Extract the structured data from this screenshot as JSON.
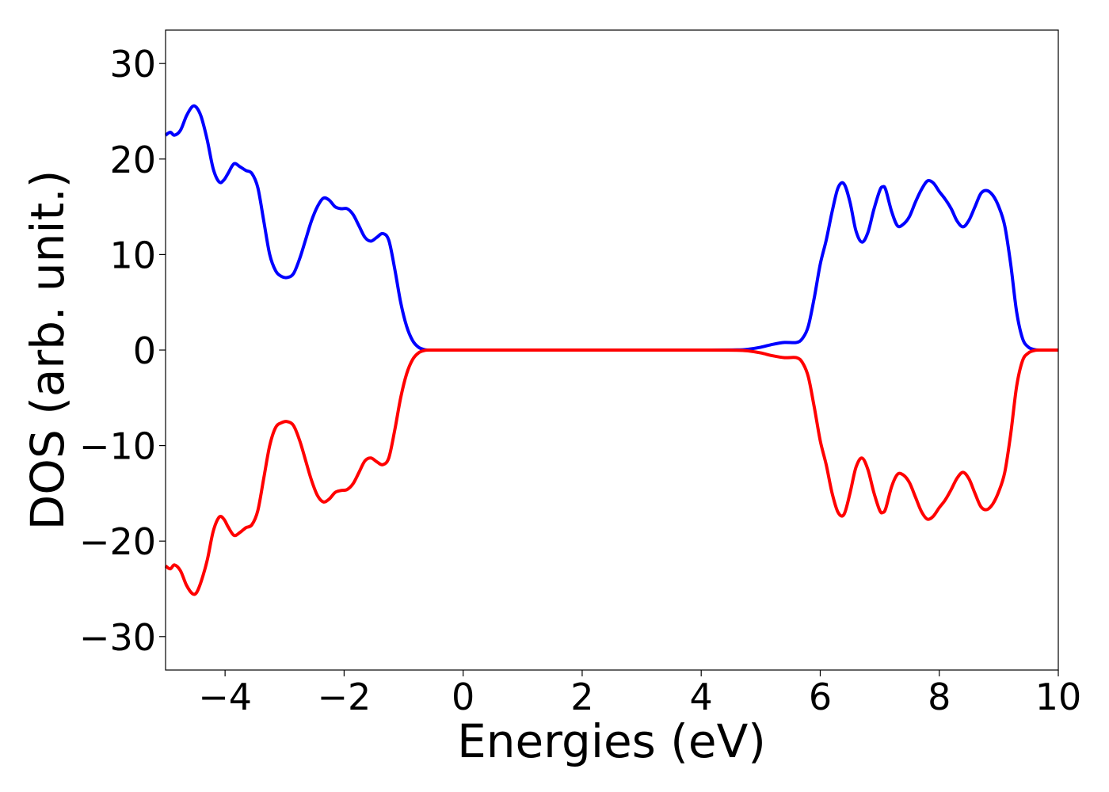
{
  "chart_data": {
    "type": "line",
    "title": "",
    "xlabel": "Energies (eV)",
    "ylabel": "DOS (arb. unit.)",
    "xlim": [
      -5,
      10
    ],
    "ylim": [
      -33.5,
      33.5
    ],
    "xticks": [
      -4,
      -2,
      0,
      2,
      4,
      6,
      8,
      10
    ],
    "xtick_labels": [
      "−4",
      "−2",
      "0",
      "2",
      "4",
      "6",
      "8",
      "10"
    ],
    "yticks": [
      30,
      20,
      10,
      0,
      -10,
      -20,
      -30
    ],
    "ytick_labels": [
      "30",
      "20",
      "10",
      "0",
      "−10",
      "−20",
      "−30"
    ],
    "grid": false,
    "legend": "none",
    "series": [
      {
        "color": "#0000ff",
        "x": [
          -5.0,
          -4.92,
          -4.85,
          -4.75,
          -4.65,
          -4.55,
          -4.48,
          -4.4,
          -4.3,
          -4.2,
          -4.1,
          -4.02,
          -3.95,
          -3.85,
          -3.75,
          -3.65,
          -3.55,
          -3.45,
          -3.35,
          -3.25,
          -3.15,
          -3.05,
          -2.95,
          -2.85,
          -2.75,
          -2.65,
          -2.55,
          -2.45,
          -2.35,
          -2.25,
          -2.15,
          -2.05,
          -1.95,
          -1.85,
          -1.75,
          -1.65,
          -1.55,
          -1.45,
          -1.35,
          -1.25,
          -1.15,
          -1.05,
          -0.95,
          -0.85,
          -0.75,
          -0.65,
          -0.55,
          -0.4,
          -0.2,
          0.0,
          1.0,
          2.0,
          3.0,
          4.0,
          4.6,
          4.8,
          5.0,
          5.2,
          5.4,
          5.6,
          5.7,
          5.8,
          5.9,
          6.0,
          6.1,
          6.2,
          6.3,
          6.4,
          6.5,
          6.6,
          6.7,
          6.8,
          6.9,
          7.0,
          7.05,
          7.1,
          7.2,
          7.3,
          7.4,
          7.5,
          7.6,
          7.7,
          7.8,
          7.9,
          8.0,
          8.1,
          8.2,
          8.3,
          8.4,
          8.5,
          8.6,
          8.7,
          8.8,
          8.9,
          9.0,
          9.1,
          9.2,
          9.3,
          9.4,
          9.5,
          9.6,
          9.7,
          9.8,
          10.0
        ],
        "y": [
          22.5,
          22.8,
          22.5,
          23.0,
          24.5,
          25.5,
          25.4,
          24.4,
          22.0,
          19.0,
          17.6,
          17.8,
          18.5,
          19.5,
          19.2,
          18.8,
          18.5,
          17.0,
          13.5,
          10.0,
          8.3,
          7.7,
          7.6,
          8.0,
          9.5,
          11.5,
          13.5,
          15.0,
          15.9,
          15.7,
          15.0,
          14.8,
          14.8,
          14.2,
          13.0,
          11.8,
          11.4,
          11.8,
          12.2,
          11.5,
          8.5,
          5.0,
          2.5,
          1.0,
          0.3,
          0.05,
          0.0,
          0.0,
          0.0,
          0.0,
          0.0,
          0.0,
          0.0,
          0.0,
          0.02,
          0.1,
          0.3,
          0.6,
          0.8,
          0.8,
          1.2,
          2.5,
          5.5,
          9.0,
          11.5,
          14.5,
          17.0,
          17.4,
          15.5,
          12.5,
          11.3,
          12.3,
          14.7,
          16.7,
          17.1,
          16.8,
          14.5,
          13.0,
          13.2,
          14.0,
          15.5,
          16.8,
          17.7,
          17.5,
          16.6,
          15.8,
          14.8,
          13.5,
          12.9,
          13.6,
          15.0,
          16.4,
          16.7,
          16.2,
          15.0,
          13.0,
          9.0,
          4.0,
          1.2,
          0.3,
          0.05,
          0.0,
          0.0,
          0.0
        ]
      },
      {
        "color": "#ff0000",
        "x": [
          -5.0,
          -4.92,
          -4.85,
          -4.75,
          -4.65,
          -4.55,
          -4.48,
          -4.4,
          -4.3,
          -4.2,
          -4.1,
          -4.02,
          -3.95,
          -3.85,
          -3.75,
          -3.65,
          -3.55,
          -3.45,
          -3.35,
          -3.25,
          -3.15,
          -3.05,
          -2.95,
          -2.85,
          -2.75,
          -2.65,
          -2.55,
          -2.45,
          -2.35,
          -2.25,
          -2.15,
          -2.05,
          -1.95,
          -1.85,
          -1.75,
          -1.65,
          -1.55,
          -1.45,
          -1.35,
          -1.25,
          -1.15,
          -1.05,
          -0.95,
          -0.85,
          -0.75,
          -0.65,
          -0.55,
          -0.4,
          -0.2,
          0.0,
          1.0,
          2.0,
          3.0,
          4.0,
          4.6,
          4.8,
          5.0,
          5.2,
          5.4,
          5.6,
          5.7,
          5.8,
          5.9,
          6.0,
          6.1,
          6.2,
          6.3,
          6.4,
          6.5,
          6.6,
          6.7,
          6.8,
          6.9,
          7.0,
          7.05,
          7.1,
          7.2,
          7.3,
          7.4,
          7.5,
          7.6,
          7.7,
          7.8,
          7.9,
          8.0,
          8.1,
          8.2,
          8.3,
          8.4,
          8.5,
          8.6,
          8.7,
          8.8,
          8.9,
          9.0,
          9.1,
          9.2,
          9.3,
          9.4,
          9.5,
          9.6,
          9.7,
          9.8,
          10.0
        ],
        "y": [
          -22.6,
          -22.9,
          -22.5,
          -23.1,
          -24.6,
          -25.5,
          -25.4,
          -24.2,
          -22.0,
          -19.0,
          -17.5,
          -17.7,
          -18.5,
          -19.4,
          -19.1,
          -18.6,
          -18.3,
          -16.8,
          -13.4,
          -10.0,
          -8.1,
          -7.6,
          -7.5,
          -7.9,
          -9.4,
          -11.5,
          -13.6,
          -15.2,
          -15.9,
          -15.6,
          -14.9,
          -14.7,
          -14.6,
          -14.0,
          -12.8,
          -11.6,
          -11.3,
          -11.7,
          -12.0,
          -11.3,
          -8.4,
          -5.0,
          -2.5,
          -1.0,
          -0.3,
          -0.05,
          0.0,
          0.0,
          0.0,
          0.0,
          0.0,
          0.0,
          0.0,
          0.0,
          -0.02,
          -0.1,
          -0.3,
          -0.6,
          -0.8,
          -0.8,
          -1.3,
          -2.8,
          -6.0,
          -9.5,
          -12.0,
          -15.0,
          -17.0,
          -17.2,
          -15.0,
          -12.3,
          -11.3,
          -12.5,
          -14.9,
          -16.8,
          -17.0,
          -16.6,
          -14.3,
          -13.0,
          -13.1,
          -13.9,
          -15.4,
          -16.9,
          -17.7,
          -17.4,
          -16.5,
          -15.7,
          -14.6,
          -13.4,
          -12.8,
          -13.5,
          -15.0,
          -16.4,
          -16.7,
          -16.1,
          -14.8,
          -12.8,
          -8.8,
          -3.8,
          -1.1,
          -0.3,
          -0.05,
          0.0,
          0.0,
          0.0
        ]
      }
    ]
  }
}
